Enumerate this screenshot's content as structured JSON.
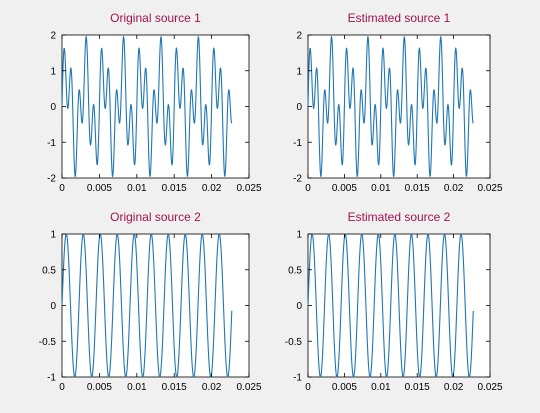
{
  "figure": {
    "background": "#f0f0f0",
    "title_color": "#a0124e",
    "line_color": "#1f77b4"
  },
  "chart_data": [
    {
      "type": "line",
      "title": "Original source 1",
      "xlabel": "",
      "ylabel": "",
      "xlim": [
        0,
        0.025
      ],
      "ylim": [
        -2,
        2
      ],
      "xticks": [
        0,
        0.005,
        0.01,
        0.015,
        0.02,
        0.025
      ],
      "xtick_labels": [
        "0",
        "0.005",
        "0.01",
        "0.015",
        "0.02",
        "0.025"
      ],
      "yticks": [
        -2,
        -1,
        0,
        1,
        2
      ],
      "ytick_labels": [
        "-2",
        "-1",
        "0",
        "1",
        "2"
      ],
      "grid": false,
      "series": [
        {
          "x_start": 0,
          "x_end": 0.0227,
          "points": 500,
          "components": [
            {
              "amplitude": 1.0,
              "frequency_hz": 400
            },
            {
              "amplitude": 1.0,
              "frequency_hz": 1000
            }
          ],
          "clip": [
            -2,
            2
          ]
        }
      ]
    },
    {
      "type": "line",
      "title": "Estimated source 1",
      "xlabel": "",
      "ylabel": "",
      "xlim": [
        0,
        0.025
      ],
      "ylim": [
        -2,
        2
      ],
      "xticks": [
        0,
        0.005,
        0.01,
        0.015,
        0.02,
        0.025
      ],
      "xtick_labels": [
        "0",
        "0.005",
        "0.01",
        "0.015",
        "0.02",
        "0.025"
      ],
      "yticks": [
        -2,
        -1,
        0,
        1,
        2
      ],
      "ytick_labels": [
        "-2",
        "-1",
        "0",
        "1",
        "2"
      ],
      "grid": false,
      "series": [
        {
          "x_start": 0,
          "x_end": 0.0227,
          "points": 500,
          "components": [
            {
              "amplitude": 1.0,
              "frequency_hz": 400
            },
            {
              "amplitude": 1.0,
              "frequency_hz": 1000
            }
          ],
          "clip": [
            -2,
            2
          ]
        }
      ]
    },
    {
      "type": "line",
      "title": "Original source 2",
      "xlabel": "",
      "ylabel": "",
      "xlim": [
        0,
        0.025
      ],
      "ylim": [
        -1,
        1
      ],
      "xticks": [
        0,
        0.005,
        0.01,
        0.015,
        0.02,
        0.025
      ],
      "xtick_labels": [
        "0",
        "0.005",
        "0.01",
        "0.015",
        "0.02",
        "0.025"
      ],
      "yticks": [
        -1,
        -0.5,
        0,
        0.5,
        1
      ],
      "ytick_labels": [
        "-1",
        "-0.5",
        "0",
        "0.5",
        "1"
      ],
      "grid": false,
      "series": [
        {
          "x_start": 0,
          "x_end": 0.0227,
          "points": 500,
          "components": [
            {
              "amplitude": 1.0,
              "frequency_hz": 440
            }
          ],
          "clip": [
            -1,
            1
          ]
        }
      ]
    },
    {
      "type": "line",
      "title": "Estimated source 2",
      "xlabel": "",
      "ylabel": "",
      "xlim": [
        0,
        0.025
      ],
      "ylim": [
        -1,
        1
      ],
      "xticks": [
        0,
        0.005,
        0.01,
        0.015,
        0.02,
        0.025
      ],
      "xtick_labels": [
        "0",
        "0.005",
        "0.01",
        "0.015",
        "0.02",
        "0.025"
      ],
      "yticks": [
        -1,
        -0.5,
        0,
        0.5,
        1
      ],
      "ytick_labels": [
        "-1",
        "-0.5",
        "0",
        "0.5",
        "1"
      ],
      "grid": false,
      "series": [
        {
          "x_start": 0,
          "x_end": 0.0227,
          "points": 500,
          "components": [
            {
              "amplitude": 1.0,
              "frequency_hz": 440
            }
          ],
          "clip": [
            -1,
            1
          ]
        }
      ]
    }
  ]
}
